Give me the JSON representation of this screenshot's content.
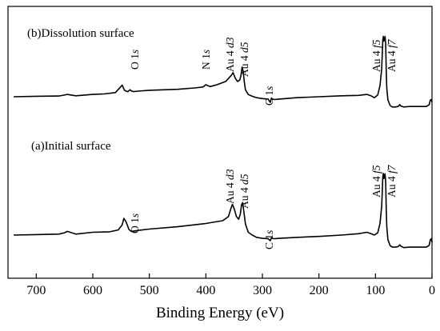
{
  "chart_data": {
    "type": "line",
    "title": "",
    "xlabel": "Binding Energy (eV)",
    "ylabel": "",
    "xlim": [
      750,
      0
    ],
    "x_reversed": true,
    "xticks": [
      700,
      600,
      500,
      400,
      300,
      200,
      100,
      0
    ],
    "grid": false,
    "legend": "none",
    "series": [
      {
        "name": "(b)Dissolution surface",
        "x": [
          740,
          700,
          660,
          645,
          640,
          630,
          600,
          580,
          560,
          548,
          544,
          541,
          538,
          534,
          531,
          528,
          520,
          500,
          450,
          420,
          405,
          400,
          397,
          392,
          380,
          365,
          355,
          352,
          348,
          344,
          340,
          338,
          336,
          334,
          332,
          330,
          325,
          318,
          310,
          300,
          290,
          286,
          284,
          282,
          279,
          270,
          240,
          200,
          160,
          130,
          115,
          108,
          102,
          96,
          92,
          89,
          88,
          87,
          86,
          85,
          84,
          83,
          82,
          81,
          80,
          78,
          74,
          70,
          65,
          60,
          57,
          55,
          50,
          40,
          25,
          10,
          5,
          3,
          1,
          0
        ],
        "y": [
          0.0,
          0.01,
          0.015,
          0.05,
          0.04,
          0.02,
          0.05,
          0.06,
          0.09,
          0.25,
          0.14,
          0.12,
          0.11,
          0.15,
          0.12,
          0.11,
          0.12,
          0.14,
          0.16,
          0.19,
          0.21,
          0.26,
          0.24,
          0.22,
          0.26,
          0.33,
          0.46,
          0.52,
          0.4,
          0.33,
          0.36,
          0.45,
          0.64,
          0.55,
          0.32,
          0.15,
          0.05,
          0.01,
          -0.02,
          -0.04,
          -0.05,
          -0.12,
          -0.03,
          -0.05,
          -0.06,
          -0.05,
          -0.02,
          0.0,
          0.02,
          0.03,
          0.05,
          0.02,
          -0.02,
          0.04,
          0.24,
          0.6,
          0.9,
          1.22,
          1.3,
          1.2,
          1.22,
          1.3,
          1.14,
          0.55,
          0.18,
          -0.07,
          -0.19,
          -0.22,
          -0.22,
          -0.21,
          -0.17,
          -0.2,
          -0.22,
          -0.21,
          -0.21,
          -0.21,
          -0.17,
          -0.07,
          -0.06,
          -0.12
        ],
        "annotations": [
          {
            "label": "O 1s",
            "x": 531
          },
          {
            "label": "N 1s",
            "x": 398
          },
          {
            "label": "Au 4 d3",
            "x": 353
          },
          {
            "label": "Au 4 d5",
            "x": 335
          },
          {
            "label": "C 1s",
            "x": 285
          },
          {
            "label": "Au 4 f5",
            "x": 87
          },
          {
            "label": "Au 4 f7",
            "x": 84
          }
        ]
      },
      {
        "name": "(a)Initial surface",
        "x": [
          740,
          700,
          660,
          650,
          645,
          640,
          630,
          600,
          570,
          555,
          548,
          545,
          541,
          536,
          532,
          526,
          520,
          500,
          450,
          400,
          370,
          360,
          356,
          353,
          350,
          346,
          342,
          339,
          337,
          335,
          333,
          330,
          325,
          318,
          310,
          300,
          290,
          286,
          284,
          282,
          279,
          270,
          240,
          200,
          160,
          130,
          115,
          108,
          102,
          96,
          92,
          89,
          88,
          87,
          86,
          85,
          84,
          83,
          82,
          81,
          80,
          78,
          74,
          70,
          65,
          60,
          57,
          55,
          50,
          40,
          25,
          10,
          5,
          3,
          1,
          0
        ],
        "y": [
          0.0,
          0.01,
          0.02,
          0.05,
          0.08,
          0.06,
          0.02,
          0.06,
          0.07,
          0.11,
          0.22,
          0.36,
          0.28,
          0.12,
          0.08,
          0.09,
          0.1,
          0.13,
          0.18,
          0.25,
          0.31,
          0.4,
          0.56,
          0.66,
          0.57,
          0.4,
          0.34,
          0.45,
          0.65,
          0.7,
          0.52,
          0.24,
          0.06,
          0.0,
          -0.05,
          -0.07,
          -0.08,
          -0.12,
          -0.06,
          -0.07,
          -0.08,
          -0.07,
          -0.05,
          -0.03,
          0.0,
          0.03,
          0.06,
          0.03,
          0.0,
          0.05,
          0.25,
          0.62,
          0.92,
          1.25,
          1.33,
          1.22,
          1.24,
          1.32,
          1.15,
          0.55,
          0.18,
          -0.1,
          -0.23,
          -0.26,
          -0.26,
          -0.25,
          -0.21,
          -0.24,
          -0.27,
          -0.26,
          -0.26,
          -0.26,
          -0.22,
          -0.1,
          -0.08,
          -0.16
        ],
        "annotations": [
          {
            "label": "O 1s",
            "x": 530
          },
          {
            "label": "Au 4 d3",
            "x": 353
          },
          {
            "label": "Au 4 d5",
            "x": 335
          },
          {
            "label": "C 1s",
            "x": 285
          },
          {
            "label": "Au 4 f5",
            "x": 87
          },
          {
            "label": "Au 4 f7",
            "x": 84
          }
        ]
      }
    ]
  },
  "labels": {
    "panel_b": "(b)Dissolution surface",
    "panel_a": "(a)Initial surface",
    "xlabel": "Binding Energy (eV)",
    "peaks": {
      "o1s": "O 1",
      "n1s": "N 1",
      "c1s": "C 1",
      "s": "s",
      "au": "Au 4 ",
      "d3": "d3",
      "d5": "d5",
      "f5": "f5",
      "f7": "f7"
    }
  }
}
